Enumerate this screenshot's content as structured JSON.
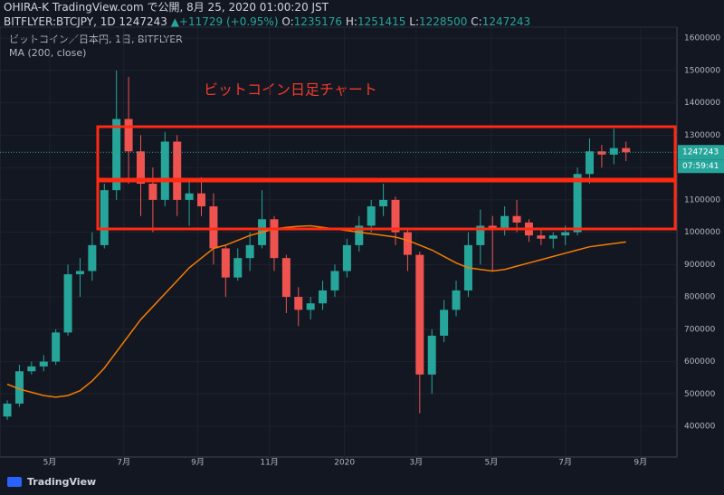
{
  "header": {
    "line1": "OHIRA-K TradingView.com で公開, 8月 25, 2020 01:00:20 JST",
    "symbol": "BITFLYER:BTCJPY, 1D 1247243",
    "change": "▲+11729 (+0.95%)",
    "ohlc": [
      {
        "label": "O:",
        "value": "1235176"
      },
      {
        "label": "H:",
        "value": "1251415"
      },
      {
        "label": "L:",
        "value": "1228500"
      },
      {
        "label": "C:",
        "value": "1247243"
      }
    ]
  },
  "chart_data": {
    "type": "candlestick",
    "title": "ビットコイン／日本円, 1日, BITFLYER",
    "annotation": "ビットコイン日足チャート",
    "categories": [
      null,
      null,
      null,
      null,
      null,
      null,
      null,
      null,
      null,
      null,
      null,
      null,
      null,
      null,
      null,
      null,
      null,
      null,
      null,
      null,
      null,
      null,
      null,
      null,
      null,
      null,
      null,
      null,
      null,
      null,
      null,
      null,
      null,
      null,
      null,
      null,
      null,
      null,
      null,
      null,
      null,
      null,
      null,
      null,
      null,
      null,
      null,
      null,
      null,
      null,
      null,
      null
    ],
    "open": [
      430000,
      470000,
      570000,
      585000,
      600000,
      690000,
      870000,
      880000,
      960000,
      1130000,
      1350000,
      1250000,
      1150000,
      1100000,
      1280000,
      1100000,
      1120000,
      1080000,
      950000,
      860000,
      920000,
      960000,
      1040000,
      920000,
      800000,
      760000,
      780000,
      820000,
      880000,
      960000,
      1020000,
      1080000,
      1100000,
      1000000,
      930000,
      560000,
      680000,
      760000,
      820000,
      960000,
      1020000,
      1010000,
      1050000,
      1030000,
      990000,
      980000,
      990000,
      1000000,
      1180000,
      1250000,
      1240000,
      1260000
    ],
    "high": [
      480000,
      590000,
      600000,
      620000,
      700000,
      900000,
      920000,
      1000000,
      1150000,
      1500000,
      1480000,
      1300000,
      1200000,
      1310000,
      1300000,
      1160000,
      1170000,
      1120000,
      960000,
      950000,
      1000000,
      1130000,
      1050000,
      930000,
      830000,
      800000,
      850000,
      900000,
      980000,
      1050000,
      1100000,
      1150000,
      1110000,
      1010000,
      940000,
      700000,
      790000,
      850000,
      1000000,
      1070000,
      1050000,
      1080000,
      1100000,
      1040000,
      1010000,
      1000000,
      1020000,
      1200000,
      1290000,
      1270000,
      1320000,
      1280000
    ],
    "low": [
      420000,
      460000,
      560000,
      570000,
      590000,
      680000,
      800000,
      850000,
      950000,
      1100000,
      1150000,
      1050000,
      1000000,
      1080000,
      1050000,
      1020000,
      1050000,
      900000,
      800000,
      850000,
      880000,
      950000,
      880000,
      750000,
      710000,
      730000,
      760000,
      800000,
      860000,
      940000,
      1000000,
      1050000,
      960000,
      880000,
      440000,
      500000,
      660000,
      740000,
      800000,
      900000,
      880000,
      990000,
      1000000,
      970000,
      960000,
      950000,
      960000,
      990000,
      1150000,
      1200000,
      1210000,
      1220000
    ],
    "close": [
      470000,
      570000,
      585000,
      600000,
      690000,
      870000,
      880000,
      960000,
      1130000,
      1350000,
      1250000,
      1150000,
      1100000,
      1280000,
      1100000,
      1120000,
      1080000,
      950000,
      860000,
      920000,
      960000,
      1040000,
      920000,
      800000,
      760000,
      780000,
      820000,
      880000,
      960000,
      1020000,
      1080000,
      1100000,
      1000000,
      930000,
      560000,
      680000,
      760000,
      820000,
      960000,
      1020000,
      1010000,
      1050000,
      1030000,
      990000,
      980000,
      990000,
      1000000,
      1180000,
      1250000,
      1240000,
      1260000,
      1247243
    ],
    "up_color": "#26a69a",
    "down_color": "#ef5350",
    "series": [
      {
        "name": "MA (200, close)",
        "color": "#f57c00",
        "values": [
          530000,
          515000,
          505000,
          495000,
          490000,
          495000,
          510000,
          540000,
          580000,
          630000,
          680000,
          730000,
          770000,
          810000,
          850000,
          890000,
          920000,
          950000,
          960000,
          975000,
          990000,
          1000000,
          1010000,
          1015000,
          1018000,
          1020000,
          1015000,
          1010000,
          1005000,
          1000000,
          995000,
          990000,
          985000,
          975000,
          960000,
          945000,
          925000,
          905000,
          890000,
          885000,
          880000,
          885000,
          895000,
          905000,
          915000,
          925000,
          935000,
          945000,
          955000,
          960000,
          965000,
          970000
        ]
      }
    ],
    "last_price": 1247243,
    "countdown": "07:59:41",
    "ylim": [
      305000,
      1634000
    ],
    "yticks": [
      400000,
      500000,
      600000,
      700000,
      800000,
      900000,
      1000000,
      1100000,
      1200000,
      1300000,
      1400000,
      1500000,
      1600000
    ],
    "xlim": [
      -0.6,
      55.2
    ],
    "xticks": [
      {
        "value": 3.5,
        "label": "5月"
      },
      {
        "value": 9.6,
        "label": "7月"
      },
      {
        "value": 15.7,
        "label": "9月"
      },
      {
        "value": 21.6,
        "label": "11月"
      },
      {
        "value": 27.8,
        "label": "2020"
      },
      {
        "value": 33.7,
        "label": "3月"
      },
      {
        "value": 39.9,
        "label": "5月"
      },
      {
        "value": 46,
        "label": "7月"
      },
      {
        "value": 52.2,
        "label": "9月"
      }
    ]
  },
  "footer": {
    "brand": "TradingView"
  }
}
